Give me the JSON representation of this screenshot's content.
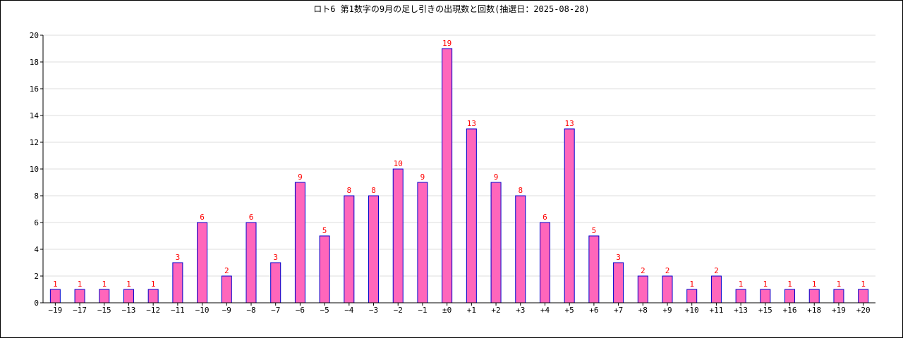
{
  "chart_data": {
    "type": "bar",
    "title": "ロト6 第1数字の9月の足し引きの出現数と回数(抽選日：2025-08-28)",
    "xlabel": "",
    "ylabel": "",
    "categories": [
      "−19",
      "−17",
      "−15",
      "−13",
      "−12",
      "−11",
      "−10",
      "−9",
      "−8",
      "−7",
      "−6",
      "−5",
      "−4",
      "−3",
      "−2",
      "−1",
      "±0",
      "+1",
      "+2",
      "+3",
      "+4",
      "+5",
      "+6",
      "+7",
      "+8",
      "+9",
      "+10",
      "+11",
      "+13",
      "+15",
      "+16",
      "+18",
      "+19",
      "+20"
    ],
    "values": [
      1,
      1,
      1,
      1,
      1,
      3,
      6,
      2,
      6,
      3,
      9,
      5,
      8,
      8,
      10,
      9,
      19,
      13,
      9,
      8,
      6,
      13,
      5,
      3,
      2,
      2,
      1,
      2,
      1,
      1,
      1,
      1,
      1,
      1
    ],
    "ylim": [
      0,
      20
    ],
    "yticks": [
      0,
      2,
      4,
      6,
      8,
      10,
      12,
      14,
      16,
      18,
      20
    ],
    "grid": true,
    "colors": {
      "bar_fill": "#ff66bb",
      "bar_stroke": "#0000cc",
      "label": "#ff0000",
      "grid": "#dddddd",
      "axis": "#000000"
    }
  }
}
